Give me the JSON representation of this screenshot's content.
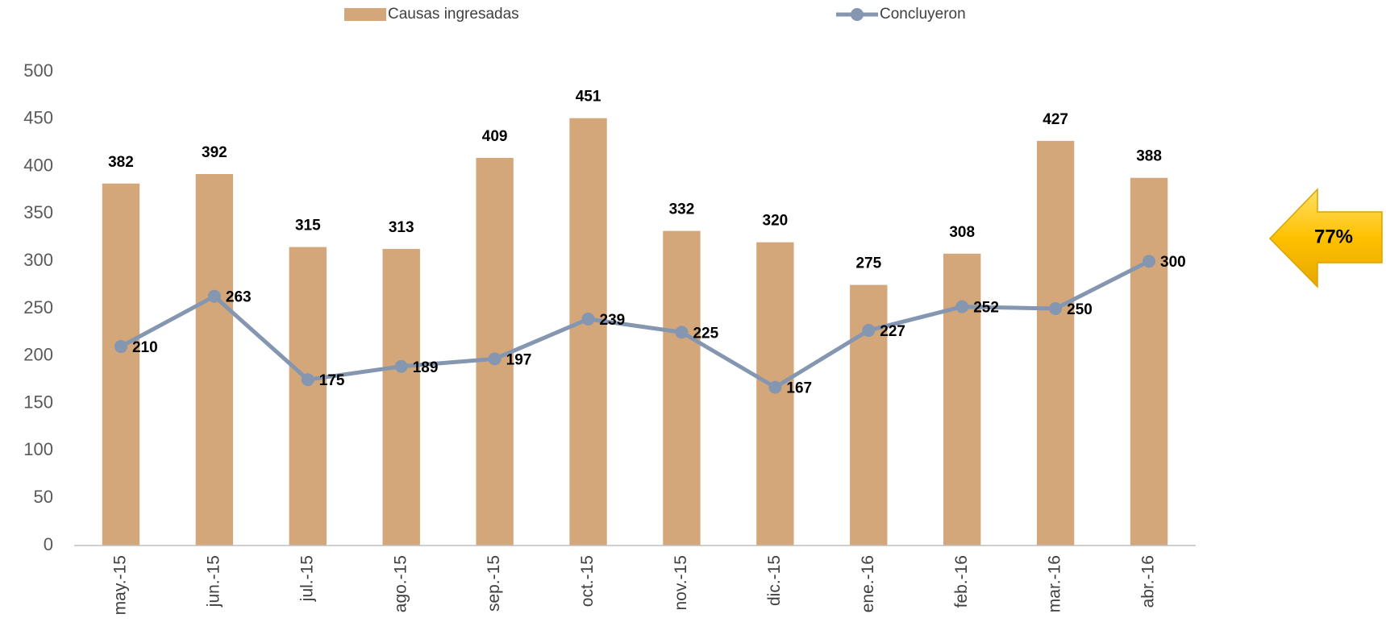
{
  "chart_data": {
    "type": "bar",
    "categories": [
      "may.-15",
      "jun.-15",
      "jul.-15",
      "ago.-15",
      "sep.-15",
      "oct.-15",
      "nov.-15",
      "dic.-15",
      "ene.-16",
      "feb.-16",
      "mar.-16",
      "abr.-16"
    ],
    "series": [
      {
        "name": "Causas ingresadas",
        "type": "bar",
        "color": "#d4a77a",
        "values": [
          382,
          392,
          315,
          313,
          409,
          451,
          332,
          320,
          275,
          308,
          427,
          388
        ]
      },
      {
        "name": "Concluyeron",
        "type": "line",
        "color": "#8496b0",
        "values": [
          210,
          263,
          175,
          189,
          197,
          239,
          225,
          167,
          227,
          252,
          250,
          300
        ]
      }
    ],
    "ylim": [
      0,
      500
    ],
    "yticks": [
      0,
      50,
      100,
      150,
      200,
      250,
      300,
      350,
      400,
      450,
      500
    ],
    "grid": false,
    "legend": "top",
    "annotation": "77%"
  }
}
